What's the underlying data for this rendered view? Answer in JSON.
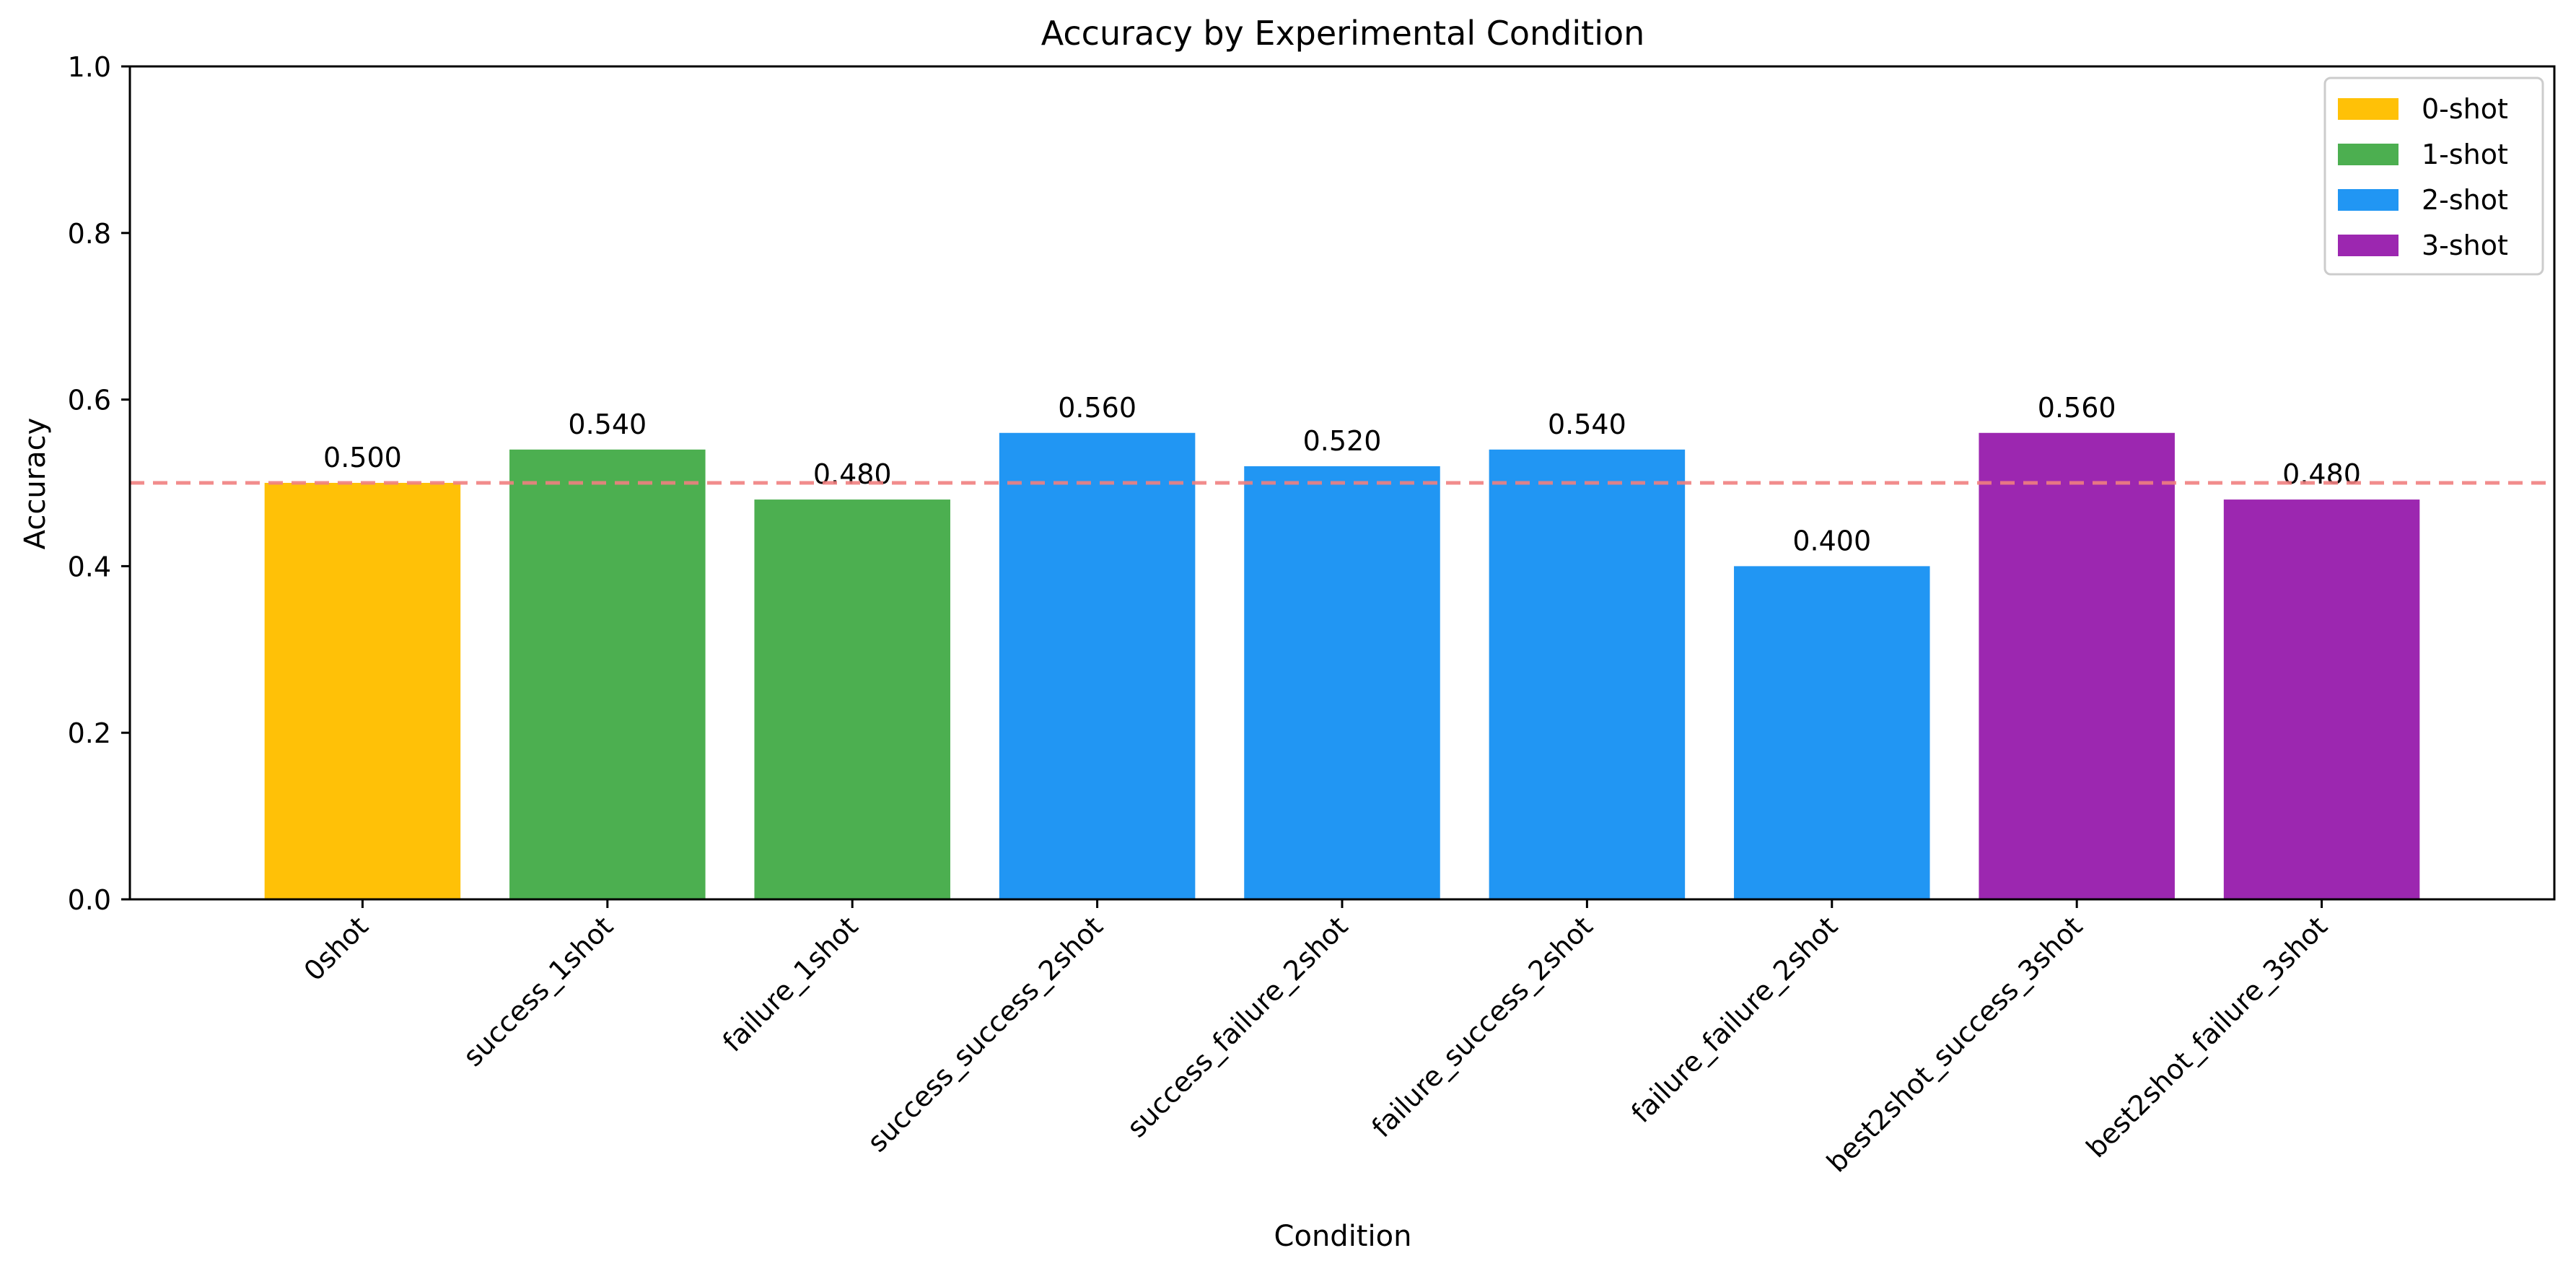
{
  "chart_data": {
    "type": "bar",
    "title": "Accuracy by Experimental Condition",
    "xlabel": "Condition",
    "ylabel": "Accuracy",
    "ylim": [
      0,
      1.0
    ],
    "yticks": [
      "0.0",
      "0.2",
      "0.4",
      "0.6",
      "0.8",
      "1.0"
    ],
    "categories": [
      "0shot",
      "success_1shot",
      "failure_1shot",
      "success_success_2shot",
      "success_failure_2shot",
      "failure_success_2shot",
      "failure_failure_2shot",
      "best2shot_success_3shot",
      "best2shot_failure_3shot"
    ],
    "values": [
      0.5,
      0.54,
      0.48,
      0.56,
      0.52,
      0.54,
      0.4,
      0.56,
      0.48
    ],
    "value_labels": [
      "0.500",
      "0.540",
      "0.480",
      "0.560",
      "0.520",
      "0.540",
      "0.400",
      "0.560",
      "0.480"
    ],
    "groups": [
      "0-shot",
      "1-shot",
      "1-shot",
      "2-shot",
      "2-shot",
      "2-shot",
      "2-shot",
      "3-shot",
      "3-shot"
    ],
    "legend": {
      "position": "top-right",
      "entries": [
        {
          "label": "0-shot",
          "color": "#FFC107"
        },
        {
          "label": "1-shot",
          "color": "#4CAF50"
        },
        {
          "label": "2-shot",
          "color": "#2196F3"
        },
        {
          "label": "3-shot",
          "color": "#9C27B0"
        }
      ]
    },
    "reference_line": {
      "y": 0.5,
      "color": "#F08080",
      "style": "dashed"
    },
    "grid": false
  }
}
